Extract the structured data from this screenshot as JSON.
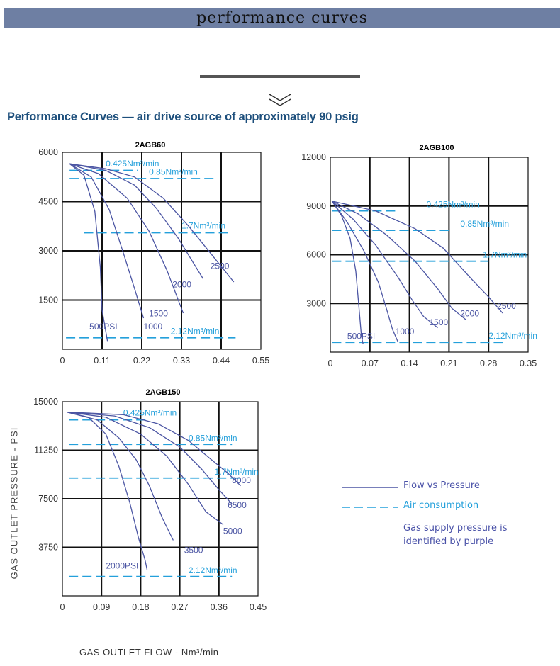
{
  "page": {
    "banner_title": "performance curves",
    "heading": "Performance Curves — air drive source of approximately 90 psig",
    "y_axis_label": "GAS OUTLET PRESSURE - PSI",
    "x_axis_label": "GAS OUTLET FLOW - Nm³/min"
  },
  "colors": {
    "curve": "#4b55a3",
    "air": "#24a0db",
    "grid": "#111111",
    "heading": "#1d4f7c"
  },
  "icons": {
    "divider": "chevron-down-icon"
  },
  "legend": {
    "flow_vs_pressure": "Flow vs Pressure",
    "air_consumption": "Air consumption",
    "note": "Gas supply pressure is identified by purple"
  },
  "chart_data": [
    {
      "type": "line",
      "title": "2AGB60",
      "xlabel": "GAS OUTLET FLOW - Nm³/min",
      "ylabel": "GAS OUTLET PRESSURE - PSI",
      "xlim": [
        0,
        0.55
      ],
      "ylim": [
        0,
        6000
      ],
      "x_ticks": [
        "0",
        "0.11",
        "0.22",
        "0.33",
        "0.44",
        "0.55"
      ],
      "y_ticks": [
        "1500",
        "3000",
        "4500",
        "6000"
      ],
      "series": [
        {
          "name": "500PSI",
          "points": [
            [
              0.02,
              5650
            ],
            [
              0.06,
              5300
            ],
            [
              0.09,
              4200
            ],
            [
              0.105,
              2500
            ],
            [
              0.11,
              1200
            ],
            [
              0.125,
              250
            ]
          ]
        },
        {
          "name": "1000",
          "points": [
            [
              0.02,
              5650
            ],
            [
              0.08,
              5250
            ],
            [
              0.13,
              4250
            ],
            [
              0.17,
              2900
            ],
            [
              0.2,
              1850
            ],
            [
              0.225,
              950
            ]
          ]
        },
        {
          "name": "1500",
          "points": [
            [
              0.02,
              5650
            ],
            [
              0.1,
              5350
            ],
            [
              0.18,
              4600
            ],
            [
              0.24,
              3600
            ],
            [
              0.29,
              2400
            ],
            [
              0.335,
              1100
            ]
          ]
        },
        {
          "name": "2000",
          "points": [
            [
              0.02,
              5650
            ],
            [
              0.12,
              5450
            ],
            [
              0.2,
              5000
            ],
            [
              0.26,
              4300
            ],
            [
              0.32,
              3400
            ],
            [
              0.39,
              2150
            ]
          ]
        },
        {
          "name": "2500",
          "points": [
            [
              0.02,
              5650
            ],
            [
              0.12,
              5500
            ],
            [
              0.2,
              5250
            ],
            [
              0.28,
              4600
            ],
            [
              0.35,
              3750
            ],
            [
              0.42,
              2800
            ],
            [
              0.475,
              2050
            ]
          ]
        }
      ],
      "air_consumption": [
        {
          "label": "0.425Nm³/min",
          "y": 5450,
          "x_range": [
            0.02,
            0.21
          ]
        },
        {
          "label": "0.85Nm³/min",
          "y": 5200,
          "x_range": [
            0.02,
            0.42
          ]
        },
        {
          "label": "1.7Nm³/min",
          "y": 3550,
          "x_range": [
            0.06,
            0.46
          ]
        },
        {
          "label": "2.12Nm³/min",
          "y": 350,
          "x_range": [
            0.01,
            0.48
          ]
        }
      ],
      "annotations": [
        "500PSI",
        "1000",
        "1500",
        "2000",
        "2500"
      ]
    },
    {
      "type": "line",
      "title": "2AGB100",
      "xlabel": "GAS OUTLET FLOW - Nm³/min",
      "ylabel": "GAS OUTLET PRESSURE - PSI",
      "xlim": [
        0,
        0.35
      ],
      "ylim": [
        0,
        12000
      ],
      "x_ticks": [
        "0",
        "0.07",
        "0.14",
        "0.21",
        "0.28",
        "0.35"
      ],
      "y_ticks": [
        "3000",
        "6000",
        "9000",
        "12000"
      ],
      "series": [
        {
          "name": "500PSI",
          "points": [
            [
              0.003,
              9300
            ],
            [
              0.02,
              8400
            ],
            [
              0.035,
              7000
            ],
            [
              0.045,
              5000
            ],
            [
              0.05,
              3000
            ],
            [
              0.055,
              1000
            ],
            [
              0.058,
              500
            ]
          ]
        },
        {
          "name": "1000",
          "points": [
            [
              0.003,
              9300
            ],
            [
              0.03,
              8000
            ],
            [
              0.06,
              6200
            ],
            [
              0.085,
              4300
            ],
            [
              0.1,
              2600
            ],
            [
              0.11,
              1400
            ],
            [
              0.12,
              600
            ]
          ]
        },
        {
          "name": "1500",
          "points": [
            [
              0.003,
              9300
            ],
            [
              0.04,
              8200
            ],
            [
              0.08,
              6600
            ],
            [
              0.12,
              4600
            ],
            [
              0.145,
              3200
            ],
            [
              0.165,
              2200
            ],
            [
              0.19,
              1500
            ]
          ]
        },
        {
          "name": "2000",
          "points": [
            [
              0.003,
              9300
            ],
            [
              0.05,
              8500
            ],
            [
              0.1,
              7200
            ],
            [
              0.15,
              5600
            ],
            [
              0.19,
              3900
            ],
            [
              0.215,
              2700
            ],
            [
              0.24,
              2000
            ]
          ]
        },
        {
          "name": "2500",
          "points": [
            [
              0.003,
              9300
            ],
            [
              0.08,
              8700
            ],
            [
              0.15,
              7600
            ],
            [
              0.2,
              6400
            ],
            [
              0.25,
              4500
            ],
            [
              0.28,
              3400
            ],
            [
              0.305,
              2400
            ]
          ]
        }
      ],
      "air_consumption": [
        {
          "label": "0.425Nm³/min",
          "y": 8700,
          "x_range": [
            0.003,
            0.12
          ]
        },
        {
          "label": "0.85Nm³/min",
          "y": 7500,
          "x_range": [
            0.003,
            0.21
          ]
        },
        {
          "label": "1.7Nm³/min",
          "y": 5600,
          "x_range": [
            0.003,
            0.28
          ]
        },
        {
          "label": "2.12Nm³/min",
          "y": 600,
          "x_range": [
            0.003,
            0.31
          ]
        }
      ],
      "annotations": [
        "500PSI",
        "1000",
        "1500",
        "2000",
        "2500"
      ]
    },
    {
      "type": "line",
      "title": "2AGB150",
      "xlabel": "GAS OUTLET FLOW - Nm³/min",
      "ylabel": "GAS OUTLET PRESSURE - PSI",
      "xlim": [
        0,
        0.45
      ],
      "ylim": [
        0,
        15000
      ],
      "x_ticks": [
        "0",
        "0.09",
        "0.18",
        "0.27",
        "0.36",
        "0.45"
      ],
      "y_ticks": [
        "3750",
        "7500",
        "11250",
        "15000"
      ],
      "series": [
        {
          "name": "2000PSI",
          "points": [
            [
              0.01,
              14200
            ],
            [
              0.06,
              13800
            ],
            [
              0.1,
              12500
            ],
            [
              0.13,
              10000
            ],
            [
              0.155,
              7200
            ],
            [
              0.175,
              4500
            ],
            [
              0.19,
              2800
            ],
            [
              0.195,
              2000
            ]
          ]
        },
        {
          "name": "3500",
          "points": [
            [
              0.01,
              14200
            ],
            [
              0.08,
              13600
            ],
            [
              0.13,
              12200
            ],
            [
              0.17,
              10500
            ],
            [
              0.2,
              8500
            ],
            [
              0.23,
              6000
            ],
            [
              0.255,
              4300
            ]
          ]
        },
        {
          "name": "5000",
          "points": [
            [
              0.01,
              14200
            ],
            [
              0.1,
              13800
            ],
            [
              0.18,
              12500
            ],
            [
              0.24,
              10800
            ],
            [
              0.29,
              8600
            ],
            [
              0.33,
              6500
            ],
            [
              0.37,
              5500
            ]
          ]
        },
        {
          "name": "6500",
          "points": [
            [
              0.01,
              14200
            ],
            [
              0.12,
              13900
            ],
            [
              0.2,
              13000
            ],
            [
              0.27,
              11500
            ],
            [
              0.32,
              9800
            ],
            [
              0.36,
              8200
            ],
            [
              0.39,
              7100
            ]
          ]
        },
        {
          "name": "8000",
          "points": [
            [
              0.01,
              14200
            ],
            [
              0.14,
              14000
            ],
            [
              0.22,
              13300
            ],
            [
              0.29,
              12000
            ],
            [
              0.34,
              10600
            ],
            [
              0.38,
              9500
            ],
            [
              0.41,
              8500
            ]
          ]
        }
      ],
      "air_consumption": [
        {
          "label": "0.425Nm³/min",
          "y": 13600,
          "x_range": [
            0.015,
            0.2
          ]
        },
        {
          "label": "0.85Nm³/min",
          "y": 11700,
          "x_range": [
            0.015,
            0.39
          ]
        },
        {
          "label": "1.7Nm³/min",
          "y": 9100,
          "x_range": [
            0.015,
            0.41
          ]
        },
        {
          "label": "2.12Nm³/min",
          "y": 1500,
          "x_range": [
            0.015,
            0.39
          ]
        }
      ],
      "annotations": [
        "2000PSI",
        "3500",
        "5000",
        "6500",
        "8000"
      ]
    }
  ]
}
